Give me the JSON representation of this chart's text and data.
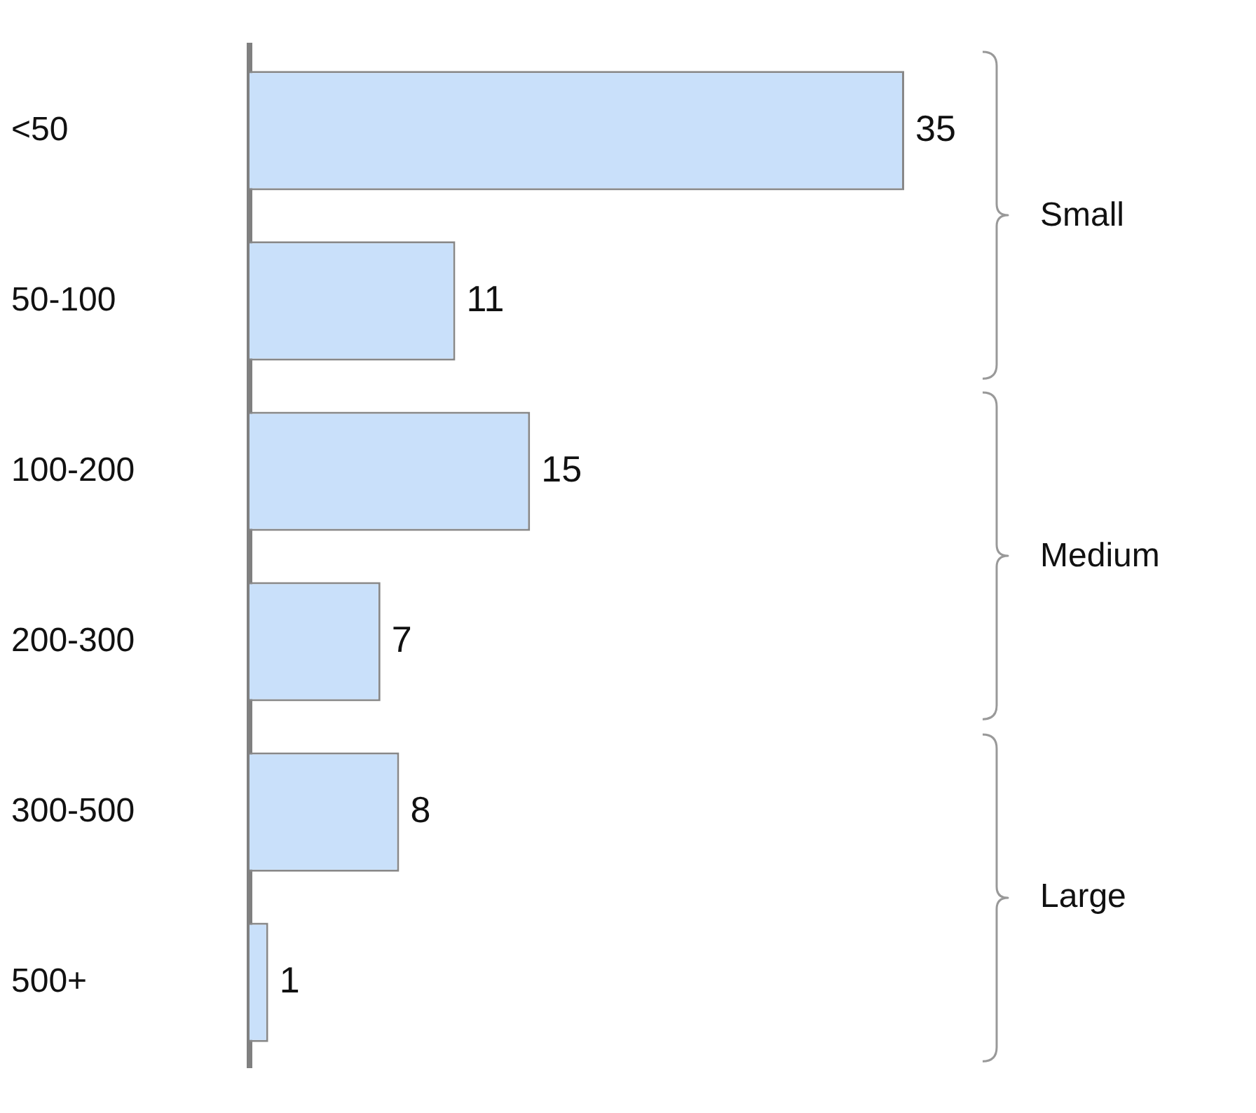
{
  "chart_data": {
    "type": "bar",
    "orientation": "horizontal",
    "categories": [
      "<50",
      "50-100",
      "100-200",
      "200-300",
      "300-500",
      "500+"
    ],
    "values": [
      35,
      11,
      15,
      7,
      8,
      1
    ],
    "color": "#c9e0fa",
    "data_labels": true,
    "grid": false,
    "legend": false,
    "annotations": [
      "Small",
      "Medium",
      "Large"
    ]
  }
}
